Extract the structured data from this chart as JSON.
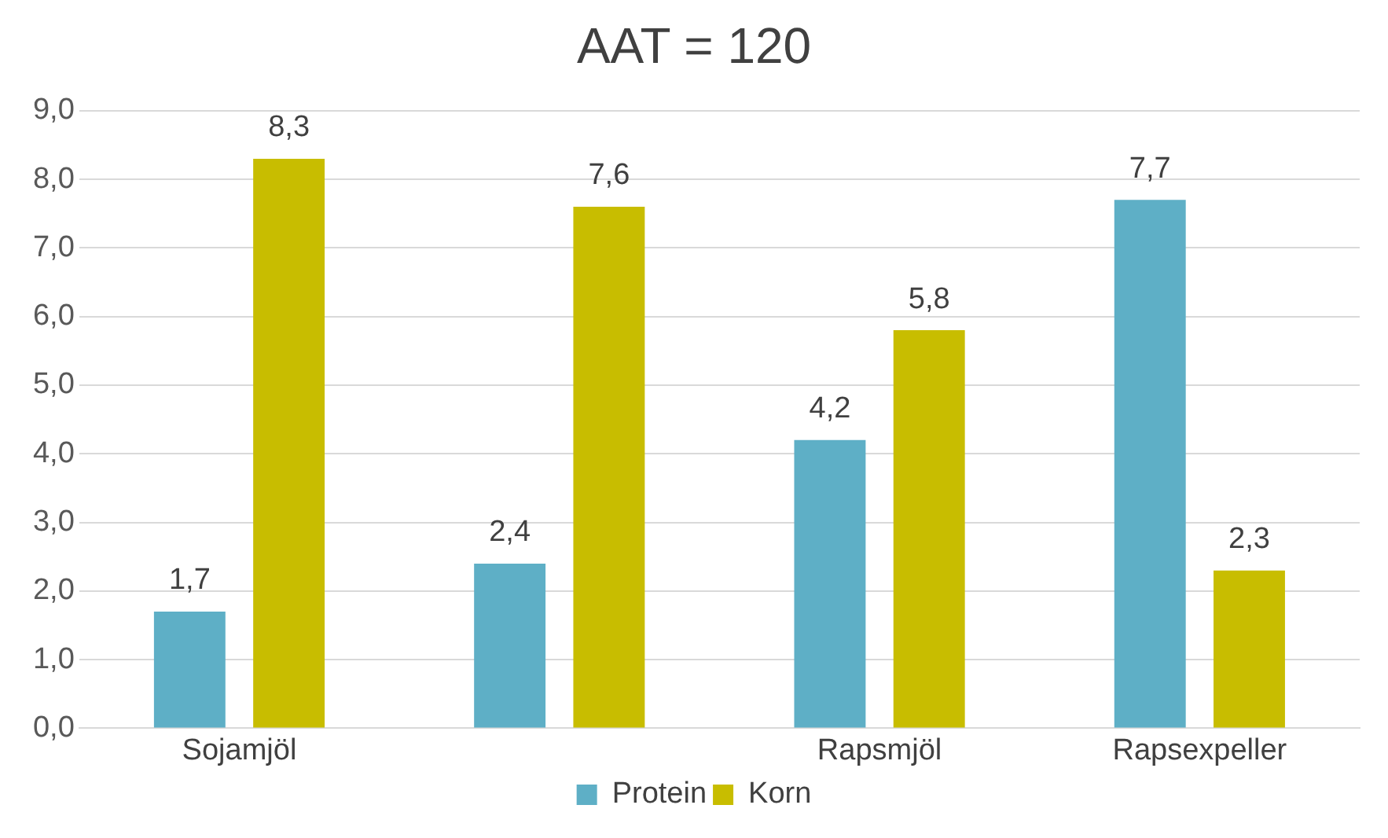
{
  "chart_data": {
    "type": "bar",
    "title": "AAT = 120",
    "categories": [
      "Sojamjöl",
      null,
      "Rapsmjöl",
      "Rapsexpeller"
    ],
    "series": [
      {
        "name": "Protein",
        "color": "#5eafc6",
        "values": [
          1.7,
          2.4,
          4.2,
          7.7
        ],
        "value_labels": [
          "1,7",
          "2,4",
          "4,2",
          "7,7"
        ]
      },
      {
        "name": "Korn",
        "color": "#c8bd00",
        "values": [
          8.3,
          7.6,
          5.8,
          2.3
        ],
        "value_labels": [
          "8,3",
          "7,6",
          "5,8",
          "2,3"
        ]
      }
    ],
    "ylim": [
      0,
      9
    ],
    "yticks": [
      {
        "value": 0,
        "label": "0,0"
      },
      {
        "value": 1,
        "label": "1,0"
      },
      {
        "value": 2,
        "label": "2,0"
      },
      {
        "value": 3,
        "label": "3,0"
      },
      {
        "value": 4,
        "label": "4,0"
      },
      {
        "value": 5,
        "label": "5,0"
      },
      {
        "value": 6,
        "label": "6,0"
      },
      {
        "value": 7,
        "label": "7,0"
      },
      {
        "value": 8,
        "label": "8,0"
      },
      {
        "value": 9,
        "label": "9,0"
      }
    ],
    "grid": "y",
    "legend": "bottom"
  }
}
